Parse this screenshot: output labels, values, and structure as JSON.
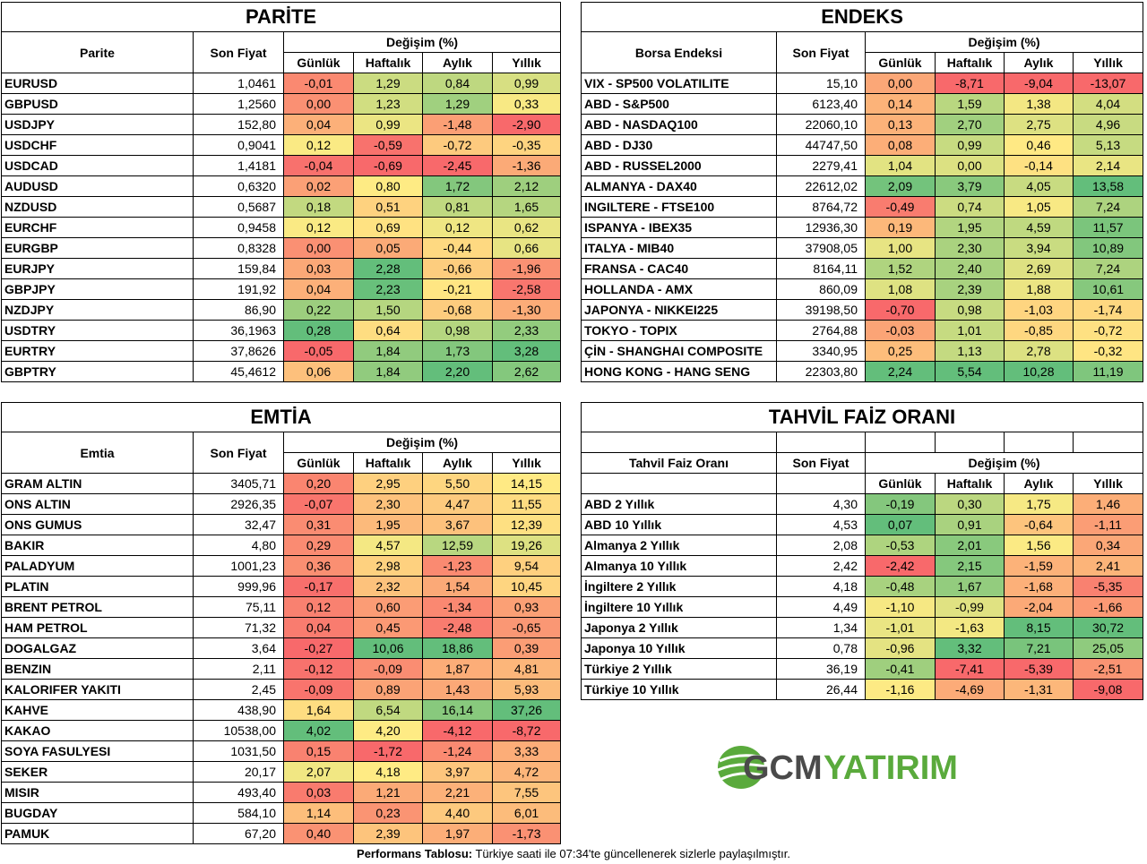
{
  "parite": {
    "title": "PARİTE",
    "col_name": "Parite",
    "col_price": "Son Fiyat",
    "col_change": "Değişim (%)",
    "periods": [
      "Günlük",
      "Haftalık",
      "Aylık",
      "Yıllık"
    ],
    "rows": [
      {
        "name": "EURUSD",
        "price": "1,0461",
        "vals": [
          "-0,01",
          "1,29",
          "0,84",
          "0,99"
        ]
      },
      {
        "name": "GBPUSD",
        "price": "1,2560",
        "vals": [
          "0,00",
          "1,23",
          "1,29",
          "0,33"
        ]
      },
      {
        "name": "USDJPY",
        "price": "152,80",
        "vals": [
          "0,04",
          "0,99",
          "-1,48",
          "-2,90"
        ]
      },
      {
        "name": "USDCHF",
        "price": "0,9041",
        "vals": [
          "0,12",
          "-0,59",
          "-0,72",
          "-0,35"
        ]
      },
      {
        "name": "USDCAD",
        "price": "1,4181",
        "vals": [
          "-0,04",
          "-0,69",
          "-2,45",
          "-1,36"
        ]
      },
      {
        "name": "AUDUSD",
        "price": "0,6320",
        "vals": [
          "0,02",
          "0,80",
          "1,72",
          "2,12"
        ]
      },
      {
        "name": "NZDUSD",
        "price": "0,5687",
        "vals": [
          "0,18",
          "0,51",
          "0,81",
          "1,65"
        ]
      },
      {
        "name": "EURCHF",
        "price": "0,9458",
        "vals": [
          "0,12",
          "0,69",
          "0,12",
          "0,62"
        ]
      },
      {
        "name": "EURGBP",
        "price": "0,8328",
        "vals": [
          "0,00",
          "0,05",
          "-0,44",
          "0,66"
        ]
      },
      {
        "name": "EURJPY",
        "price": "159,84",
        "vals": [
          "0,03",
          "2,28",
          "-0,66",
          "-1,96"
        ]
      },
      {
        "name": "GBPJPY",
        "price": "191,92",
        "vals": [
          "0,04",
          "2,23",
          "-0,21",
          "-2,58"
        ]
      },
      {
        "name": "NZDJPY",
        "price": "86,90",
        "vals": [
          "0,22",
          "1,50",
          "-0,68",
          "-1,30"
        ]
      },
      {
        "name": "USDTRY",
        "price": "36,1963",
        "vals": [
          "0,28",
          "0,64",
          "0,98",
          "2,33"
        ]
      },
      {
        "name": "EURTRY",
        "price": "37,8626",
        "vals": [
          "-0,05",
          "1,84",
          "1,73",
          "3,28"
        ]
      },
      {
        "name": "GBPTRY",
        "price": "45,4612",
        "vals": [
          "0,06",
          "1,84",
          "2,20",
          "2,62"
        ]
      }
    ]
  },
  "endeks": {
    "title": "ENDEKS",
    "col_name": "Borsa Endeksi",
    "col_price": "Son Fiyat",
    "col_change": "Değişim (%)",
    "periods": [
      "Günlük",
      "Haftalık",
      "Aylık",
      "Yıllık"
    ],
    "rows": [
      {
        "name": "VIX  - SP500 VOLATILITE",
        "price": "15,10",
        "vals": [
          "0,00",
          "-8,71",
          "-9,04",
          "-13,07"
        ]
      },
      {
        "name": "ABD - S&P500",
        "price": "6123,40",
        "vals": [
          "0,14",
          "1,59",
          "1,38",
          "4,04"
        ]
      },
      {
        "name": "ABD - NASDAQ100",
        "price": "22060,10",
        "vals": [
          "0,13",
          "2,70",
          "2,75",
          "4,96"
        ]
      },
      {
        "name": "ABD - DJ30",
        "price": "44747,50",
        "vals": [
          "0,08",
          "0,99",
          "0,46",
          "5,13"
        ]
      },
      {
        "name": "ABD - RUSSEL2000",
        "price": "2279,41",
        "vals": [
          "1,04",
          "0,00",
          "-0,14",
          "2,14"
        ]
      },
      {
        "name": "ALMANYA - DAX40",
        "price": "22612,02",
        "vals": [
          "2,09",
          "3,79",
          "4,05",
          "13,58"
        ]
      },
      {
        "name": "INGILTERE - FTSE100",
        "price": "8764,72",
        "vals": [
          "-0,49",
          "0,74",
          "1,05",
          "7,24"
        ]
      },
      {
        "name": "ISPANYA - IBEX35",
        "price": "12936,30",
        "vals": [
          "0,19",
          "1,95",
          "4,59",
          "11,57"
        ]
      },
      {
        "name": "ITALYA - MIB40",
        "price": "37908,05",
        "vals": [
          "1,00",
          "2,30",
          "3,94",
          "10,89"
        ]
      },
      {
        "name": "FRANSA - CAC40",
        "price": "8164,11",
        "vals": [
          "1,52",
          "2,40",
          "2,69",
          "7,24"
        ]
      },
      {
        "name": "HOLLANDA - AMX",
        "price": "860,09",
        "vals": [
          "1,08",
          "2,39",
          "1,88",
          "10,61"
        ]
      },
      {
        "name": "JAPONYA - NIKKEI225",
        "price": "39198,50",
        "vals": [
          "-0,70",
          "0,98",
          "-1,03",
          "-1,74"
        ]
      },
      {
        "name": "TOKYO - TOPIX",
        "price": "2764,88",
        "vals": [
          "-0,03",
          "1,01",
          "-0,85",
          "-0,72"
        ]
      },
      {
        "name": "ÇİN - SHANGHAI COMPOSITE",
        "price": "3340,95",
        "vals": [
          "0,25",
          "1,13",
          "2,78",
          "-0,32"
        ]
      },
      {
        "name": "HONG KONG - HANG SENG",
        "price": "22303,80",
        "vals": [
          "2,24",
          "5,54",
          "10,28",
          "11,19"
        ]
      }
    ]
  },
  "emtia": {
    "title": "EMTİA",
    "col_name": "Emtia",
    "col_price": "Son Fiyat",
    "col_change": "Değişim (%)",
    "periods": [
      "Günlük",
      "Haftalık",
      "Aylık",
      "Yıllık"
    ],
    "rows": [
      {
        "name": "GRAM ALTIN",
        "price": "3405,71",
        "vals": [
          "0,20",
          "2,95",
          "5,50",
          "14,15"
        ]
      },
      {
        "name": "ONS ALTIN",
        "price": "2926,35",
        "vals": [
          "-0,07",
          "2,30",
          "4,47",
          "11,55"
        ]
      },
      {
        "name": "ONS GUMUS",
        "price": "32,47",
        "vals": [
          "0,31",
          "1,95",
          "3,67",
          "12,39"
        ]
      },
      {
        "name": "BAKIR",
        "price": "4,80",
        "vals": [
          "0,29",
          "4,57",
          "12,59",
          "19,26"
        ]
      },
      {
        "name": "PALADYUM",
        "price": "1001,23",
        "vals": [
          "0,36",
          "2,98",
          "-1,23",
          "9,54"
        ]
      },
      {
        "name": "PLATIN",
        "price": "999,96",
        "vals": [
          "-0,17",
          "2,32",
          "1,54",
          "10,45"
        ]
      },
      {
        "name": "BRENT PETROL",
        "price": "75,11",
        "vals": [
          "0,12",
          "0,60",
          "-1,34",
          "0,93"
        ]
      },
      {
        "name": "HAM PETROL",
        "price": "71,32",
        "vals": [
          "0,04",
          "0,45",
          "-2,48",
          "-0,65"
        ]
      },
      {
        "name": "DOGALGAZ",
        "price": "3,64",
        "vals": [
          "-0,27",
          "10,06",
          "18,86",
          "0,39"
        ]
      },
      {
        "name": "BENZIN",
        "price": "2,11",
        "vals": [
          "-0,12",
          "-0,09",
          "1,87",
          "4,81"
        ]
      },
      {
        "name": "KALORIFER YAKITI",
        "price": "2,45",
        "vals": [
          "-0,09",
          "0,89",
          "1,43",
          "5,93"
        ]
      },
      {
        "name": "KAHVE",
        "price": "438,90",
        "vals": [
          "1,64",
          "6,54",
          "16,14",
          "37,26"
        ]
      },
      {
        "name": "KAKAO",
        "price": "10538,00",
        "vals": [
          "4,02",
          "4,20",
          "-4,12",
          "-8,72"
        ]
      },
      {
        "name": "SOYA FASULYESI",
        "price": "1031,50",
        "vals": [
          "0,15",
          "-1,72",
          "-1,24",
          "3,33"
        ]
      },
      {
        "name": "SEKER",
        "price": "20,17",
        "vals": [
          "2,07",
          "4,18",
          "3,97",
          "4,72"
        ]
      },
      {
        "name": "MISIR",
        "price": "493,40",
        "vals": [
          "0,03",
          "1,21",
          "2,21",
          "7,55"
        ]
      },
      {
        "name": "BUGDAY",
        "price": "584,10",
        "vals": [
          "1,14",
          "0,23",
          "4,40",
          "6,01"
        ]
      },
      {
        "name": "PAMUK",
        "price": "67,20",
        "vals": [
          "0,40",
          "2,39",
          "1,97",
          "-1,73"
        ]
      }
    ]
  },
  "tahvil": {
    "title": "TAHVİL FAİZ ORANI",
    "col_name": "Tahvil Faiz Oranı",
    "col_price": "Son Fiyat",
    "col_change": "Değişim (%)",
    "periods": [
      "Günlük",
      "Haftalık",
      "Aylık",
      "Yıllık"
    ],
    "rows": [
      {
        "name": "ABD 2 Yıllık",
        "price": "4,30",
        "vals": [
          "-0,19",
          "0,30",
          "1,75",
          "1,46"
        ]
      },
      {
        "name": "ABD 10 Yıllık",
        "price": "4,53",
        "vals": [
          "0,07",
          "0,91",
          "-0,64",
          "-1,11"
        ]
      },
      {
        "name": "Almanya 2 Yıllık",
        "price": "2,08",
        "vals": [
          "-0,53",
          "2,01",
          "1,56",
          "0,34"
        ]
      },
      {
        "name": "Almanya 10 Yıllık",
        "price": "2,42",
        "vals": [
          "-2,42",
          "2,15",
          "-1,59",
          "2,41"
        ]
      },
      {
        "name": "İngiltere 2 Yıllık",
        "price": "4,18",
        "vals": [
          "-0,48",
          "1,67",
          "-1,68",
          "-5,35"
        ]
      },
      {
        "name": "İngiltere 10 Yıllık",
        "price": "4,49",
        "vals": [
          "-1,10",
          "-0,99",
          "-2,04",
          "-1,66"
        ]
      },
      {
        "name": "Japonya 2 Yıllık",
        "price": "1,34",
        "vals": [
          "-1,01",
          "-1,63",
          "8,15",
          "30,72"
        ]
      },
      {
        "name": "Japonya 10 Yıllık",
        "price": "0,78",
        "vals": [
          "-0,96",
          "3,32",
          "7,21",
          "25,05"
        ]
      },
      {
        "name": "Türkiye 2 Yıllık",
        "price": "36,19",
        "vals": [
          "-0,41",
          "-7,41",
          "-5,39",
          "-2,51"
        ]
      },
      {
        "name": "Türkiye 10 Yıllık",
        "price": "26,44",
        "vals": [
          "-1,16",
          "-4,69",
          "-1,31",
          "-9,08"
        ]
      }
    ]
  },
  "logo": {
    "part1": "GCM",
    "part2": "YATIRIM",
    "color1": "#4a4a4a",
    "color2": "#5aaa3c"
  },
  "footer": {
    "bold": "Performans Tablosu:",
    "text": " Türkiye saati ile 07:34'te güncellenerek sizlerle paylaşılmıştır."
  },
  "scale_colors": {
    "red": "#f8696b",
    "yellow": "#ffeb84",
    "green": "#63be7b"
  }
}
